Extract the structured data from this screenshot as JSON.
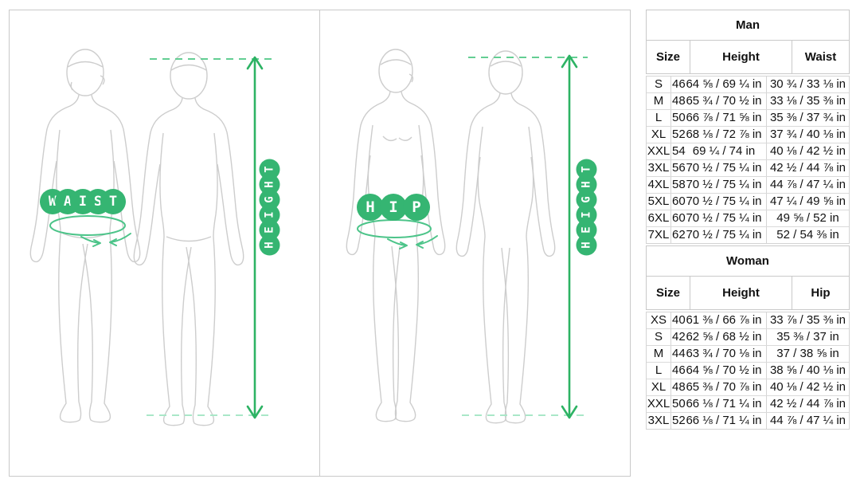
{
  "colors": {
    "badge_green": "#35b572",
    "arrow_green": "#2db364",
    "dash_green_top": "#63ce93",
    "dash_green_bottom": "#a9e7c8",
    "tape_green": "#4cc489",
    "figure_stroke": "#cdcdcd",
    "table_border": "#c9c9c9"
  },
  "panels": {
    "man": {
      "waist_label": "WAIST",
      "height_label": "HEIGHT"
    },
    "woman": {
      "hip_label": "HIP",
      "height_label": "HEIGHT"
    }
  },
  "tables": [
    {
      "title": "Man",
      "columns": [
        "Size",
        "Height",
        "Waist"
      ],
      "rows": [
        {
          "size": "S",
          "num": "46",
          "height": "64 ⅝ / 69 ¼ in",
          "girth": "30 ¾ / 33 ⅛ in"
        },
        {
          "size": "M",
          "num": "48",
          "height": "65 ¾ / 70 ½ in",
          "girth": "33 ⅛ / 35 ⅜ in"
        },
        {
          "size": "L",
          "num": "50",
          "height": "66 ⅞ / 71 ⅝ in",
          "girth": "35 ⅜ / 37 ¾ in"
        },
        {
          "size": "XL",
          "num": "52",
          "height": "68 ⅛ / 72 ⅞ in",
          "girth": "37 ¾ / 40 ⅛ in"
        },
        {
          "size": "XXL",
          "num": "54",
          "height": "69 ¼ / 74 in",
          "girth": "40 ⅛ / 42 ½ in"
        },
        {
          "size": "3XL",
          "num": "56",
          "height": "70 ½ / 75 ¼ in",
          "girth": "42 ½ / 44 ⅞ in"
        },
        {
          "size": "4XL",
          "num": "58",
          "height": "70 ½ / 75 ¼ in",
          "girth": "44 ⅞ / 47 ¼ in"
        },
        {
          "size": "5XL",
          "num": "60",
          "height": "70 ½ / 75 ¼ in",
          "girth": "47 ¼ / 49 ⅝ in"
        },
        {
          "size": "6XL",
          "num": "60",
          "height": "70 ½ / 75 ¼ in",
          "girth": "49 ⅝ / 52 in"
        },
        {
          "size": "7XL",
          "num": "62",
          "height": "70 ½ / 75 ¼ in",
          "girth": "52 / 54 ⅜ in"
        }
      ]
    },
    {
      "title": "Woman",
      "columns": [
        "Size",
        "Height",
        "Hip"
      ],
      "rows": [
        {
          "size": "XS",
          "num": "40",
          "height": "61 ⅜ / 66 ⅞ in",
          "girth": "33 ⅞ / 35 ⅜ in"
        },
        {
          "size": "S",
          "num": "42",
          "height": "62 ⅝ / 68 ½ in",
          "girth": "35 ⅜ / 37 in"
        },
        {
          "size": "M",
          "num": "44",
          "height": "63 ¾ / 70 ⅛ in",
          "girth": "37 / 38 ⅝ in"
        },
        {
          "size": "L",
          "num": "46",
          "height": "64 ⅝ / 70 ½ in",
          "girth": "38 ⅝ / 40 ⅛ in"
        },
        {
          "size": "XL",
          "num": "48",
          "height": "65 ⅜ / 70 ⅞ in",
          "girth": "40 ⅛ / 42 ½ in"
        },
        {
          "size": "XXL",
          "num": "50",
          "height": "66 ⅛ / 71 ¼ in",
          "girth": "42 ½ / 44 ⅞ in"
        },
        {
          "size": "3XL",
          "num": "52",
          "height": "66 ⅛ / 71 ¼ in",
          "girth": "44 ⅞ / 47 ¼ in"
        }
      ]
    }
  ]
}
